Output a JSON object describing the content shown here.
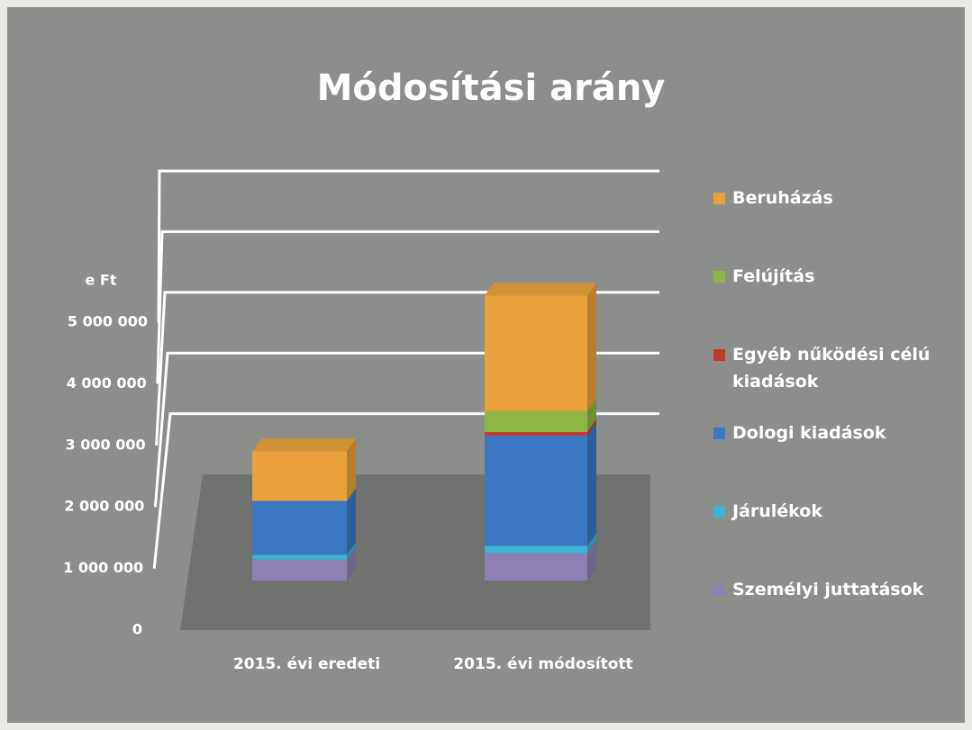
{
  "chart_data": {
    "type": "bar3d_stacked",
    "title": "Módosítási arány",
    "y_label": "e Ft",
    "categories": [
      "2015. évi eredeti",
      "2015. évi módosított"
    ],
    "series": [
      {
        "name": "Személyi juttatások",
        "color": "#8e80b2",
        "values": [
          370000,
          480000
        ]
      },
      {
        "name": "Járulékok",
        "color": "#3fb3d3",
        "values": [
          80000,
          130000
        ]
      },
      {
        "name": "Dologi kiadások",
        "color": "#3b78c4",
        "values": [
          950000,
          1940000
        ]
      },
      {
        "name": "Egyéb nűködési célú kiadások",
        "color": "#c0392b",
        "values": [
          0,
          60000
        ]
      },
      {
        "name": "Felújítás",
        "color": "#8db645",
        "values": [
          0,
          370000
        ]
      },
      {
        "name": "Beruházás",
        "color": "#eaa13b",
        "values": [
          870000,
          2030000
        ]
      }
    ],
    "ylim": [
      0,
      5000000
    ],
    "yticks": [
      0,
      {
        "value": 1000000,
        "label": "1 000 000"
      },
      {
        "value": 2000000,
        "label": "2 000 000"
      },
      {
        "value": 3000000,
        "label": "3 000 000"
      },
      {
        "value": 4000000,
        "label": "4 000 000"
      },
      {
        "value": 5000000,
        "label": "5 000 000"
      }
    ],
    "grid": true,
    "legend": "right"
  }
}
